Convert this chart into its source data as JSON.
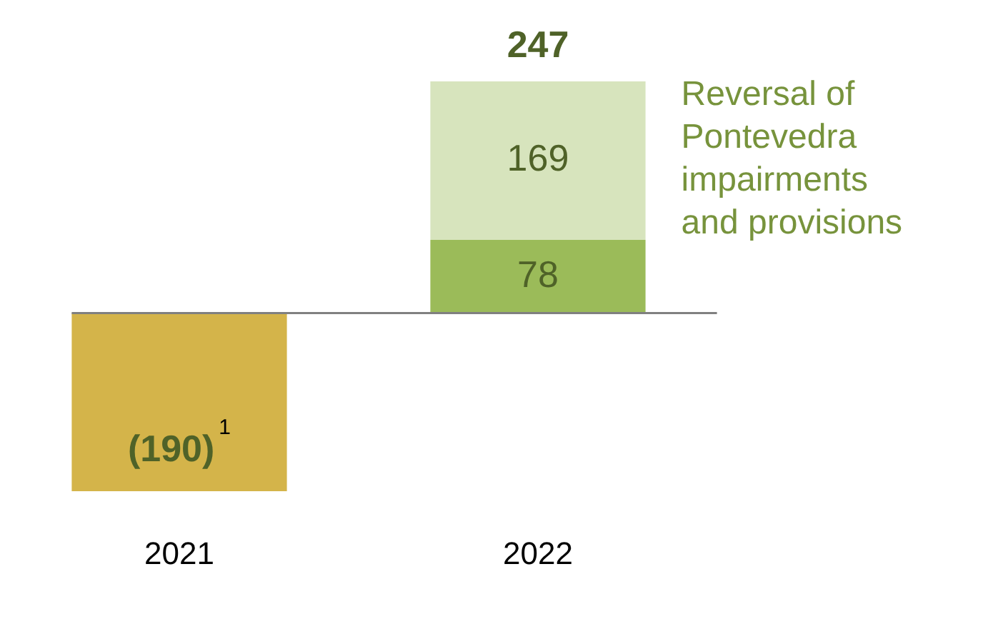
{
  "chart_data": {
    "type": "bar",
    "stacked": true,
    "categories": [
      "2021",
      "2022"
    ],
    "series": [
      {
        "values": [
          -190,
          78
        ],
        "colors": [
          "#d4b44a",
          "#9bbb59"
        ],
        "value_labels": [
          "(190)$^{1}$",
          "78"
        ]
      },
      {
        "name": "Reversal of Pontevedra impairments and provisions",
        "color": "#d7e4bd",
        "values": [
          null,
          169
        ],
        "value_labels": [
          null,
          "169"
        ]
      }
    ],
    "totals": [
      null,
      "247"
    ],
    "tick_labels": "x",
    "grid": false,
    "legend": false
  }
}
